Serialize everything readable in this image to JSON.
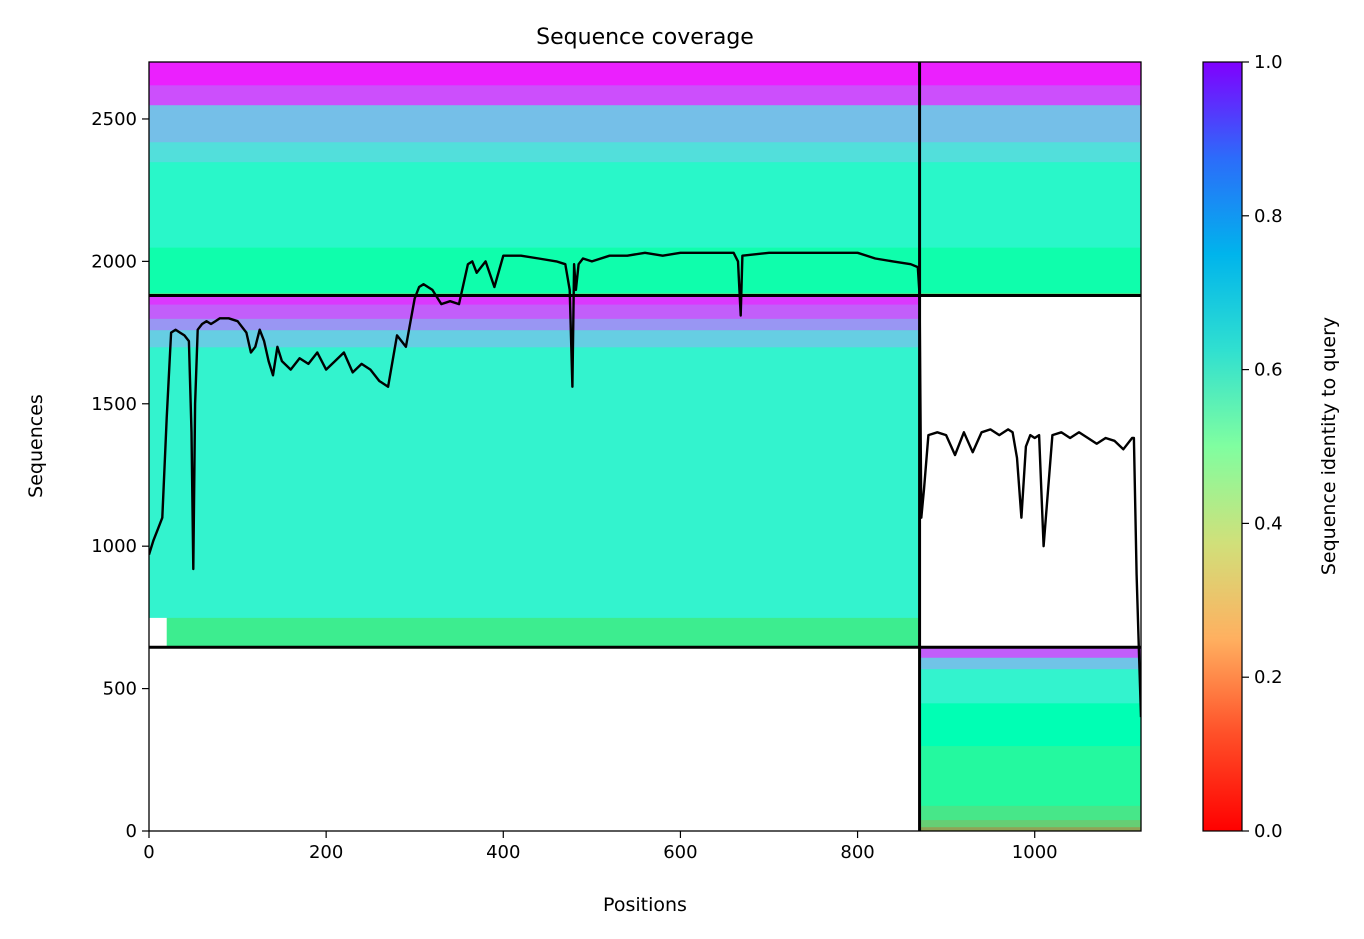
{
  "chart_data": {
    "type": "heatmap",
    "title": "Sequence coverage",
    "xlabel": "Positions",
    "ylabel": "Sequences",
    "xlim": [
      0,
      1120
    ],
    "ylim": [
      0,
      2700
    ],
    "x_ticks": [
      0,
      200,
      400,
      600,
      800,
      1000
    ],
    "y_ticks": [
      0,
      500,
      1000,
      1500,
      2000,
      2500
    ],
    "colorbar": {
      "label": "Sequence identity to query",
      "range": [
        0,
        1
      ],
      "ticks": [
        0.0,
        0.2,
        0.4,
        0.6,
        0.8,
        1.0
      ],
      "colormap": "rainbow_r"
    },
    "block_boundaries": {
      "x": [
        870
      ],
      "y": [
        645,
        1880
      ]
    },
    "blocks": [
      {
        "x": [
          0,
          870
        ],
        "y": [
          645,
          1880
        ],
        "bands": [
          {
            "y": [
              645,
              750
            ],
            "identity": 0.38,
            "x_start": 20
          },
          {
            "y": [
              750,
              1700
            ],
            "identity": 0.6
          },
          {
            "y": [
              1700,
              1760
            ],
            "identity": 0.7
          },
          {
            "y": [
              1760,
              1800
            ],
            "identity": 0.8
          },
          {
            "y": [
              1800,
              1850
            ],
            "identity": 0.88
          },
          {
            "y": [
              1850,
              1880
            ],
            "identity": 0.93
          }
        ]
      },
      {
        "x": [
          0,
          1120
        ],
        "y": [
          1880,
          2700
        ],
        "bands": [
          {
            "y": [
              1880,
              1890
            ],
            "identity": 0.35
          },
          {
            "y": [
              1890,
              2050
            ],
            "identity": 0.47
          },
          {
            "y": [
              2050,
              2350
            ],
            "identity": 0.58
          },
          {
            "y": [
              2350,
              2420
            ],
            "identity": 0.66
          },
          {
            "y": [
              2420,
              2550
            ],
            "identity": 0.73
          },
          {
            "y": [
              2550,
              2620
            ],
            "identity": 0.9
          },
          {
            "y": [
              2620,
              2700
            ],
            "identity": 0.96
          }
        ]
      },
      {
        "x": [
          870,
          1120
        ],
        "y": [
          0,
          645
        ],
        "bands": [
          {
            "y": [
              0,
              15
            ],
            "identity": 0.22
          },
          {
            "y": [
              15,
              40
            ],
            "identity": 0.3
          },
          {
            "y": [
              40,
              90
            ],
            "identity": 0.36
          },
          {
            "y": [
              90,
              300
            ],
            "identity": 0.43
          },
          {
            "y": [
              300,
              450
            ],
            "identity": 0.5
          },
          {
            "y": [
              450,
              570
            ],
            "identity": 0.6
          },
          {
            "y": [
              570,
              610
            ],
            "identity": 0.72
          },
          {
            "y": [
              610,
              645
            ],
            "identity": 0.88
          }
        ]
      }
    ],
    "coverage_line": {
      "x": [
        0,
        5,
        10,
        15,
        20,
        25,
        30,
        35,
        40,
        45,
        48,
        50,
        52,
        55,
        60,
        65,
        70,
        75,
        80,
        90,
        100,
        110,
        115,
        120,
        125,
        130,
        135,
        140,
        145,
        150,
        160,
        170,
        180,
        190,
        200,
        210,
        220,
        230,
        240,
        250,
        260,
        270,
        280,
        290,
        300,
        305,
        310,
        320,
        330,
        340,
        350,
        360,
        365,
        370,
        380,
        390,
        400,
        420,
        440,
        460,
        470,
        475,
        478,
        480,
        482,
        485,
        490,
        500,
        520,
        540,
        560,
        580,
        600,
        620,
        640,
        660,
        665,
        668,
        670,
        700,
        720,
        750,
        780,
        800,
        820,
        840,
        860,
        868,
        870,
        872,
        875,
        880,
        890,
        900,
        910,
        920,
        930,
        940,
        950,
        960,
        970,
        975,
        980,
        985,
        990,
        995,
        1000,
        1005,
        1010,
        1020,
        1030,
        1040,
        1050,
        1060,
        1070,
        1080,
        1090,
        1100,
        1110,
        1112,
        1115,
        1118,
        1120
      ],
      "y": [
        970,
        1020,
        1060,
        1100,
        1450,
        1750,
        1760,
        1750,
        1740,
        1720,
        1400,
        920,
        1500,
        1760,
        1780,
        1790,
        1780,
        1790,
        1800,
        1800,
        1790,
        1750,
        1680,
        1700,
        1760,
        1720,
        1650,
        1600,
        1700,
        1650,
        1620,
        1660,
        1640,
        1680,
        1620,
        1650,
        1680,
        1610,
        1640,
        1620,
        1580,
        1560,
        1740,
        1700,
        1870,
        1910,
        1920,
        1900,
        1850,
        1860,
        1850,
        1990,
        2000,
        1960,
        2000,
        1910,
        2020,
        2020,
        2010,
        2000,
        1990,
        1900,
        1560,
        1990,
        1900,
        1990,
        2010,
        2000,
        2020,
        2020,
        2030,
        2020,
        2030,
        2030,
        2030,
        2030,
        2000,
        1810,
        2020,
        2030,
        2030,
        2030,
        2030,
        2030,
        2010,
        2000,
        1990,
        1980,
        1880,
        1100,
        1200,
        1390,
        1400,
        1390,
        1320,
        1400,
        1330,
        1400,
        1410,
        1390,
        1410,
        1400,
        1310,
        1100,
        1350,
        1390,
        1380,
        1390,
        1000,
        1390,
        1400,
        1380,
        1400,
        1380,
        1360,
        1380,
        1370,
        1340,
        1380,
        1380,
        900,
        600,
        400,
        250
      ]
    }
  }
}
